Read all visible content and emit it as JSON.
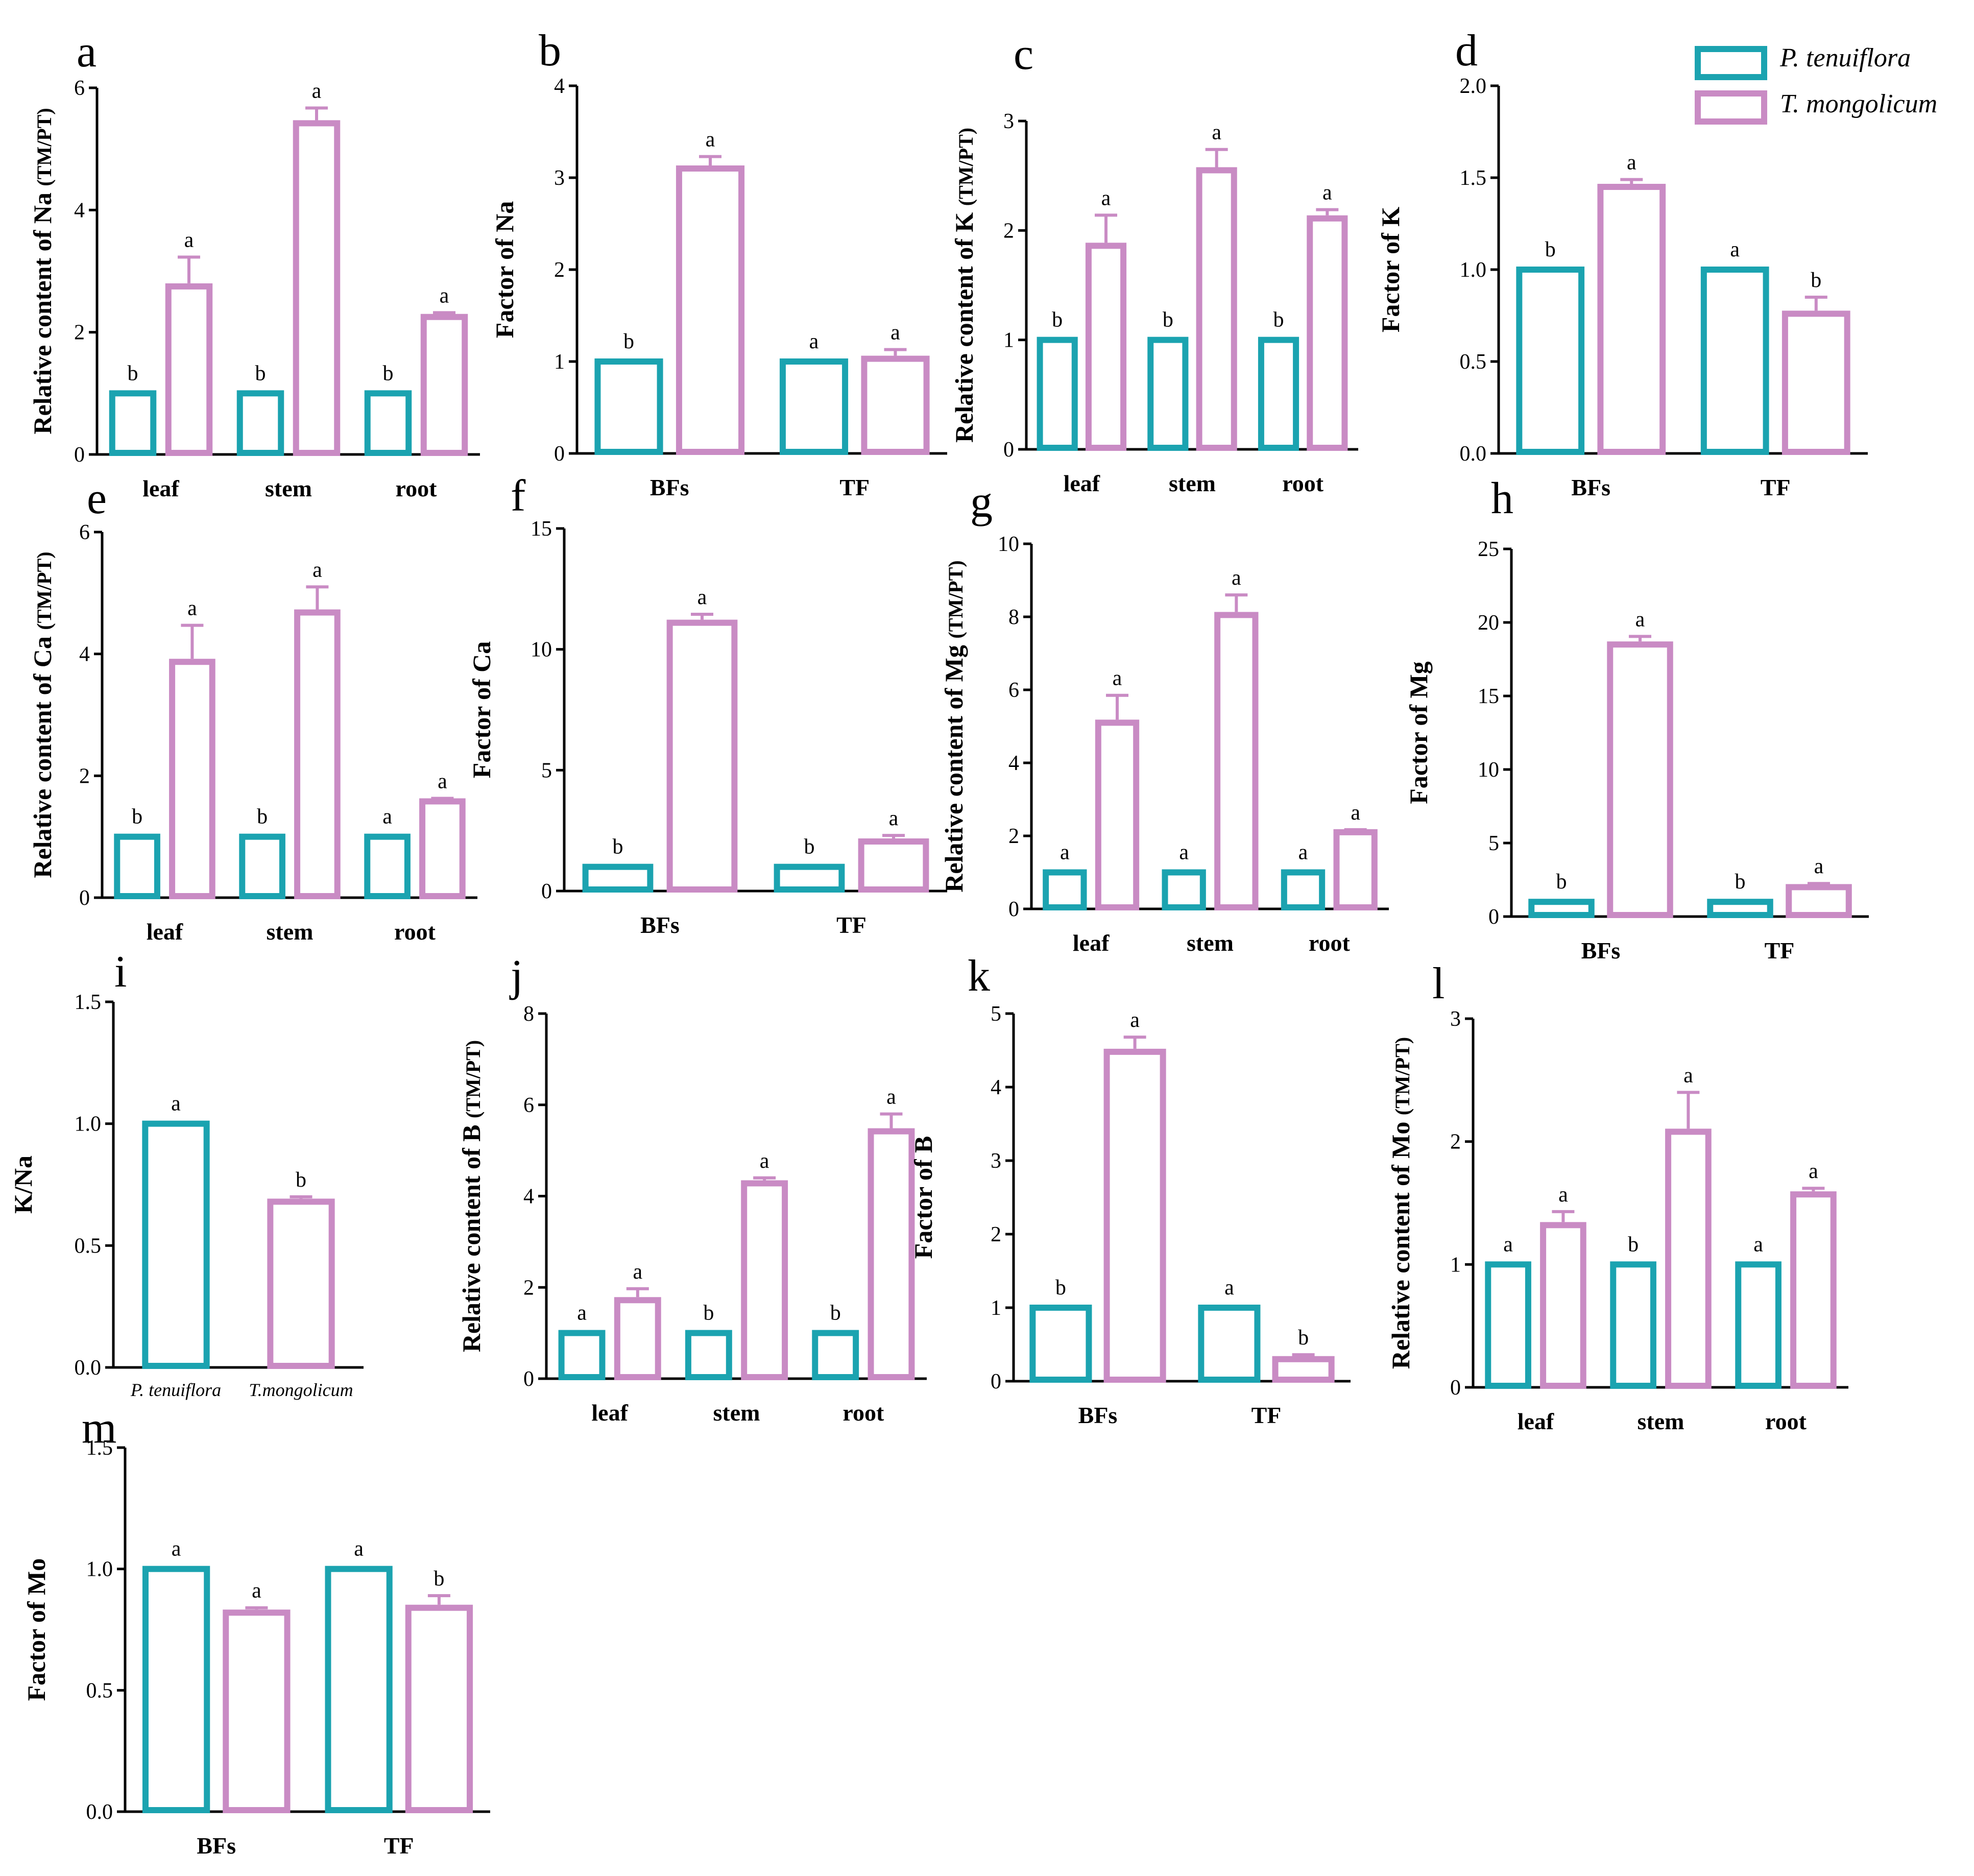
{
  "legend": {
    "series": [
      {
        "name": "P. tenuiflora",
        "color": "#1ba3b0"
      },
      {
        "name": "T. mongolicum",
        "color": "#c98bc4"
      }
    ]
  },
  "colors": {
    "pt": "#1ba3b0",
    "tm": "#c98bc4",
    "axis": "#000000"
  },
  "chart_data": [
    {
      "panel": "a",
      "type": "bar",
      "ylabel_main": "Relative content of Na ",
      "ylabel_small": "(TM/PT)",
      "categories": [
        "leaf",
        "stem",
        "root"
      ],
      "ylim": [
        0,
        6
      ],
      "yticks": [
        "0",
        "2",
        "4",
        "6"
      ],
      "series": [
        {
          "name": "P. tenuiflora",
          "values": [
            1,
            1,
            1
          ],
          "errors": [
            0,
            0,
            0
          ],
          "letters": [
            "b",
            "b",
            "b"
          ]
        },
        {
          "name": "T. mongolicum",
          "values": [
            2.75,
            5.42,
            2.25
          ],
          "errors": [
            0.48,
            0.25,
            0.07
          ],
          "letters": [
            "a",
            "a",
            "a"
          ]
        }
      ]
    },
    {
      "panel": "b",
      "type": "bar",
      "ylabel_main": "Factor of Na",
      "ylabel_small": "",
      "categories": [
        "BFs",
        "TF"
      ],
      "ylim": [
        0,
        4
      ],
      "yticks": [
        "0",
        "1",
        "2",
        "3",
        "4"
      ],
      "series": [
        {
          "name": "P. tenuiflora",
          "values": [
            1,
            1
          ],
          "errors": [
            0,
            0
          ],
          "letters": [
            "b",
            "a"
          ]
        },
        {
          "name": "T. mongolicum",
          "values": [
            3.1,
            1.03
          ],
          "errors": [
            0.13,
            0.1
          ],
          "letters": [
            "a",
            "a"
          ]
        }
      ]
    },
    {
      "panel": "c",
      "type": "bar",
      "ylabel_main": "Relative content of K ",
      "ylabel_small": "(TM/PT)",
      "categories": [
        "leaf",
        "stem",
        "root"
      ],
      "ylim": [
        0,
        3
      ],
      "yticks": [
        "0",
        "1",
        "2",
        "3"
      ],
      "series": [
        {
          "name": "P. tenuiflora",
          "values": [
            1,
            1,
            1
          ],
          "errors": [
            0,
            0,
            0
          ],
          "letters": [
            "b",
            "b",
            "b"
          ]
        },
        {
          "name": "T. mongolicum",
          "values": [
            1.86,
            2.55,
            2.11
          ],
          "errors": [
            0.28,
            0.19,
            0.08
          ],
          "letters": [
            "a",
            "a",
            "a"
          ]
        }
      ]
    },
    {
      "panel": "d",
      "type": "bar",
      "ylabel_main": "Factor of K",
      "ylabel_small": "",
      "categories": [
        "BFs",
        "TF"
      ],
      "ylim": [
        0,
        2
      ],
      "yticks": [
        "0.0",
        "0.5",
        "1.0",
        "1.5",
        "2.0"
      ],
      "series": [
        {
          "name": "P. tenuiflora",
          "values": [
            1,
            1
          ],
          "errors": [
            0,
            0
          ],
          "letters": [
            "b",
            "a"
          ]
        },
        {
          "name": "T. mongolicum",
          "values": [
            1.45,
            0.76
          ],
          "errors": [
            0.04,
            0.09
          ],
          "letters": [
            "a",
            "b"
          ]
        }
      ]
    },
    {
      "panel": "e",
      "type": "bar",
      "ylabel_main": "Relative content of Ca ",
      "ylabel_small": "(TM/PT)",
      "categories": [
        "leaf",
        "stem",
        "root"
      ],
      "ylim": [
        0,
        6
      ],
      "yticks": [
        "0",
        "2",
        "4",
        "6"
      ],
      "series": [
        {
          "name": "P. tenuiflora",
          "values": [
            1,
            1,
            1
          ],
          "errors": [
            0,
            0,
            0
          ],
          "letters": [
            "b",
            "b",
            "a"
          ]
        },
        {
          "name": "T. mongolicum",
          "values": [
            3.87,
            4.68,
            1.58
          ],
          "errors": [
            0.6,
            0.42,
            0.05
          ],
          "letters": [
            "a",
            "a",
            "a"
          ]
        }
      ]
    },
    {
      "panel": "f",
      "type": "bar",
      "ylabel_main": "Factor of Ca",
      "ylabel_small": "",
      "categories": [
        "BFs",
        "TF"
      ],
      "ylim": [
        0,
        15
      ],
      "yticks": [
        "0",
        "5",
        "10",
        "15"
      ],
      "series": [
        {
          "name": "P. tenuiflora",
          "values": [
            1,
            1
          ],
          "errors": [
            0,
            0
          ],
          "letters": [
            "b",
            "b"
          ]
        },
        {
          "name": "T. mongolicum",
          "values": [
            11.1,
            2.05
          ],
          "errors": [
            0.35,
            0.25
          ],
          "letters": [
            "a",
            "a"
          ]
        }
      ]
    },
    {
      "panel": "g",
      "type": "bar",
      "ylabel_main": "Relative content of Mg ",
      "ylabel_small": "(TM/PT)",
      "categories": [
        "leaf",
        "stem",
        "root"
      ],
      "ylim": [
        0,
        10
      ],
      "yticks": [
        "0",
        "2",
        "4",
        "6",
        "8",
        "10"
      ],
      "series": [
        {
          "name": "P. tenuiflora",
          "values": [
            1,
            1,
            1
          ],
          "errors": [
            0,
            0,
            0
          ],
          "letters": [
            "a",
            "a",
            "a"
          ]
        },
        {
          "name": "T. mongolicum",
          "values": [
            5.1,
            8.05,
            2.1
          ],
          "errors": [
            0.75,
            0.55,
            0.07
          ],
          "letters": [
            "a",
            "a",
            "a"
          ]
        }
      ]
    },
    {
      "panel": "h",
      "type": "bar",
      "ylabel_main": "Factor of Mg",
      "ylabel_small": "",
      "categories": [
        "BFs",
        "TF"
      ],
      "ylim": [
        0,
        25
      ],
      "yticks": [
        "0",
        "5",
        "10",
        "15",
        "20",
        "25"
      ],
      "series": [
        {
          "name": "P. tenuiflora",
          "values": [
            1,
            1
          ],
          "errors": [
            0,
            0
          ],
          "letters": [
            "b",
            "b"
          ]
        },
        {
          "name": "T. mongolicum",
          "values": [
            18.5,
            2.0
          ],
          "errors": [
            0.55,
            0.25
          ],
          "letters": [
            "a",
            "a"
          ]
        }
      ]
    },
    {
      "panel": "i",
      "type": "bar",
      "ylabel_main": "K/Na",
      "ylabel_small": "",
      "categories": [
        "P. tenuiflora",
        "T.mongolicum"
      ],
      "ylim": [
        0,
        1.5
      ],
      "yticks": [
        "0.0",
        "0.5",
        "1.0",
        "1.5"
      ],
      "series": [
        {
          "name": "P. tenuiflora",
          "values": [
            1,
            null
          ],
          "errors": [
            0,
            0
          ],
          "letters": [
            "a",
            ""
          ]
        },
        {
          "name": "T. mongolicum",
          "values": [
            null,
            0.68
          ],
          "errors": [
            0,
            0.02
          ],
          "letters": [
            "",
            "b"
          ]
        }
      ]
    },
    {
      "panel": "j",
      "type": "bar",
      "ylabel_main": "Relative content of B ",
      "ylabel_small": "(TM/PT)",
      "categories": [
        "leaf",
        "stem",
        "root"
      ],
      "ylim": [
        0,
        8
      ],
      "yticks": [
        "0",
        "2",
        "4",
        "6",
        "8"
      ],
      "series": [
        {
          "name": "P. tenuiflora",
          "values": [
            1,
            1,
            1
          ],
          "errors": [
            0,
            0,
            0
          ],
          "letters": [
            "a",
            "b",
            "b"
          ]
        },
        {
          "name": "T. mongolicum",
          "values": [
            1.72,
            4.28,
            5.42
          ],
          "errors": [
            0.25,
            0.12,
            0.38
          ],
          "letters": [
            "a",
            "a",
            "a"
          ]
        }
      ]
    },
    {
      "panel": "k",
      "type": "bar",
      "ylabel_main": "Factor of B",
      "ylabel_small": "",
      "categories": [
        "BFs",
        "TF"
      ],
      "ylim": [
        0,
        5
      ],
      "yticks": [
        "0",
        "1",
        "2",
        "3",
        "4",
        "5"
      ],
      "series": [
        {
          "name": "P. tenuiflora",
          "values": [
            1,
            1
          ],
          "errors": [
            0,
            0
          ],
          "letters": [
            "b",
            "a"
          ]
        },
        {
          "name": "T. mongolicum",
          "values": [
            4.48,
            0.3
          ],
          "errors": [
            0.2,
            0.06
          ],
          "letters": [
            "a",
            "b"
          ]
        }
      ]
    },
    {
      "panel": "l",
      "type": "bar",
      "ylabel_main": "Relative content of  Mo ",
      "ylabel_small": "(TM/PT)",
      "categories": [
        "leaf",
        "stem",
        "root"
      ],
      "ylim": [
        0,
        3
      ],
      "yticks": [
        "0",
        "1",
        "2",
        "3"
      ],
      "series": [
        {
          "name": "P. tenuiflora",
          "values": [
            1,
            1,
            1
          ],
          "errors": [
            0,
            0,
            0
          ],
          "letters": [
            "a",
            "b",
            "a"
          ]
        },
        {
          "name": "T. mongolicum",
          "values": [
            1.32,
            2.08,
            1.57
          ],
          "errors": [
            0.11,
            0.32,
            0.05
          ],
          "letters": [
            "a",
            "a",
            "a"
          ]
        }
      ]
    },
    {
      "panel": "m",
      "type": "bar",
      "ylabel_main": "Factor of Mo",
      "ylabel_small": "",
      "categories": [
        "BFs",
        "TF"
      ],
      "ylim": [
        0,
        1.5
      ],
      "yticks": [
        "0.0",
        "0.5",
        "1.0",
        "1.5"
      ],
      "series": [
        {
          "name": "P. tenuiflora",
          "values": [
            1,
            1
          ],
          "errors": [
            0,
            0
          ],
          "letters": [
            "a",
            "a"
          ]
        },
        {
          "name": "T. mongolicum",
          "values": [
            0.82,
            0.84
          ],
          "errors": [
            0.02,
            0.05
          ],
          "letters": [
            "a",
            "b"
          ]
        }
      ]
    }
  ]
}
